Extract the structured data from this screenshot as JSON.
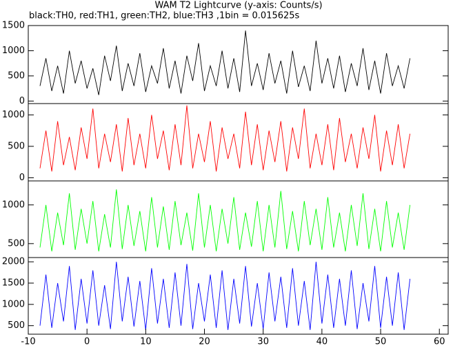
{
  "chart_data": [
    {
      "type": "line",
      "title": "WAM T2 Lightcurve (y-axis: Counts/s)",
      "subtitle": "black:TH0, red:TH1, green:TH2, blue:TH3 ,1bin = 0.015625s",
      "x": [
        -8,
        -7,
        -6,
        -5,
        -4,
        -3,
        -2,
        -1,
        0,
        1,
        2,
        3,
        4,
        5,
        6,
        7,
        8,
        9,
        10,
        11,
        12,
        13,
        14,
        15,
        16,
        17,
        18,
        19,
        20,
        21,
        22,
        23,
        24,
        25,
        26,
        27,
        28,
        29,
        30,
        31,
        32,
        33,
        34,
        35,
        36,
        37,
        38,
        39,
        40,
        41,
        42,
        43,
        44,
        45,
        46,
        47,
        48,
        49,
        50,
        51,
        52,
        53,
        54,
        55
      ],
      "xlim": [
        -10,
        61.5
      ],
      "ylim": [
        -50,
        1500
      ],
      "yticks": [
        0,
        500,
        1000,
        1500
      ],
      "series": [
        {
          "color": "#000000",
          "values": [
            300,
            850,
            200,
            700,
            150,
            1000,
            350,
            800,
            250,
            650,
            120,
            900,
            400,
            1100,
            200,
            750,
            300,
            950,
            180,
            700,
            350,
            1050,
            250,
            800,
            150,
            900,
            400,
            1150,
            200,
            700,
            300,
            1000,
            250,
            850,
            180,
            1400,
            300,
            750,
            220,
            950,
            350,
            800,
            150,
            1000,
            280,
            700,
            200,
            1200,
            350,
            850,
            250,
            900,
            180,
            750,
            300,
            1050,
            220,
            800,
            150,
            950,
            300,
            700,
            250,
            850
          ]
        }
      ]
    },
    {
      "type": "line",
      "x": [
        -8,
        -7,
        -6,
        -5,
        -4,
        -3,
        -2,
        -1,
        0,
        1,
        2,
        3,
        4,
        5,
        6,
        7,
        8,
        9,
        10,
        11,
        12,
        13,
        14,
        15,
        16,
        17,
        18,
        19,
        20,
        21,
        22,
        23,
        24,
        25,
        26,
        27,
        28,
        29,
        30,
        31,
        32,
        33,
        34,
        35,
        36,
        37,
        38,
        39,
        40,
        41,
        42,
        43,
        44,
        45,
        46,
        47,
        48,
        49,
        50,
        51,
        52,
        53,
        54,
        55
      ],
      "xlim": [
        -10,
        61.5
      ],
      "ylim": [
        -50,
        1180
      ],
      "yticks": [
        0,
        500,
        1000
      ],
      "series": [
        {
          "color": "#ff0000",
          "values": [
            150,
            750,
            100,
            900,
            200,
            650,
            120,
            800,
            300,
            1100,
            150,
            700,
            250,
            850,
            100,
            950,
            200,
            700,
            150,
            1000,
            300,
            750,
            120,
            850,
            200,
            1150,
            150,
            700,
            250,
            900,
            100,
            800,
            300,
            700,
            150,
            1050,
            200,
            850,
            120,
            750,
            250,
            900,
            100,
            800,
            300,
            1100,
            150,
            700,
            200,
            850,
            120,
            950,
            250,
            700,
            150,
            800,
            300,
            1000,
            100,
            750,
            200,
            850,
            150,
            700
          ]
        }
      ]
    },
    {
      "type": "line",
      "x": [
        -8,
        -7,
        -6,
        -5,
        -4,
        -3,
        -2,
        -1,
        0,
        1,
        2,
        3,
        4,
        5,
        6,
        7,
        8,
        9,
        10,
        11,
        12,
        13,
        14,
        15,
        16,
        17,
        18,
        19,
        20,
        21,
        22,
        23,
        24,
        25,
        26,
        27,
        28,
        29,
        30,
        31,
        32,
        33,
        34,
        35,
        36,
        37,
        38,
        39,
        40,
        41,
        42,
        43,
        44,
        45,
        46,
        47,
        48,
        49,
        50,
        51,
        52,
        53,
        54,
        55
      ],
      "xlim": [
        -10,
        61.5
      ],
      "ylim": [
        320,
        1310
      ],
      "yticks": [
        500,
        1000
      ],
      "series": [
        {
          "color": "#00ff00",
          "values": [
            450,
            1000,
            400,
            900,
            480,
            1150,
            420,
            950,
            500,
            1050,
            400,
            880,
            450,
            1200,
            430,
            1000,
            470,
            920,
            400,
            1100,
            450,
            980,
            420,
            1050,
            480,
            900,
            410,
            1150,
            450,
            1000,
            400,
            950,
            500,
            1100,
            420,
            900,
            460,
            1050,
            400,
            1000,
            450,
            1180,
            430,
            920,
            400,
            1050,
            480,
            950,
            420,
            1100,
            450,
            900,
            400,
            1000,
            470,
            1150,
            430,
            950,
            400,
            1050,
            450,
            900,
            420,
            1000
          ]
        }
      ]
    },
    {
      "type": "line",
      "x": [
        -8,
        -7,
        -6,
        -5,
        -4,
        -3,
        -2,
        -1,
        0,
        1,
        2,
        3,
        4,
        5,
        6,
        7,
        8,
        9,
        10,
        11,
        12,
        13,
        14,
        15,
        16,
        17,
        18,
        19,
        20,
        21,
        22,
        23,
        24,
        25,
        26,
        27,
        28,
        29,
        30,
        31,
        32,
        33,
        34,
        35,
        36,
        37,
        38,
        39,
        40,
        41,
        42,
        43,
        44,
        45,
        46,
        47,
        48,
        49,
        50,
        51,
        52,
        53,
        54,
        55
      ],
      "xlim": [
        -10,
        61.5
      ],
      "ylim": [
        300,
        2100
      ],
      "yticks": [
        500,
        1000,
        1500,
        2000
      ],
      "xticks": [
        -10,
        0,
        10,
        20,
        30,
        40,
        50,
        60
      ],
      "series": [
        {
          "color": "#0000ff",
          "values": [
            500,
            1700,
            450,
            1500,
            600,
            1900,
            400,
            1600,
            550,
            1800,
            500,
            1450,
            420,
            2000,
            600,
            1650,
            480,
            1550,
            400,
            1850,
            550,
            1600,
            450,
            1750,
            500,
            1950,
            420,
            1500,
            600,
            1700,
            450,
            1800,
            400,
            1600,
            550,
            1900,
            480,
            1500,
            420,
            1750,
            600,
            1650,
            450,
            1850,
            500,
            1550,
            400,
            2000,
            550,
            1700,
            450,
            1600,
            500,
            1800,
            420,
            1500,
            600,
            1900,
            450,
            1650,
            500,
            1750,
            400,
            1600
          ]
        }
      ]
    }
  ]
}
